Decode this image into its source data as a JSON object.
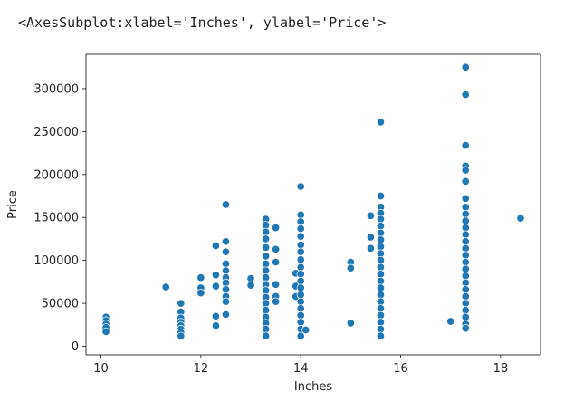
{
  "output_repr": "<AxesSubplot:xlabel='Inches', ylabel='Price'>",
  "chart_data": {
    "type": "scatter",
    "title": "",
    "xlabel": "Inches",
    "ylabel": "Price",
    "xlim": [
      9.7,
      18.8
    ],
    "ylim": [
      -10000,
      340000
    ],
    "xticks": [
      10,
      12,
      14,
      16,
      18
    ],
    "yticks": [
      0,
      50000,
      100000,
      150000,
      200000,
      250000,
      300000
    ],
    "xtick_labels": [
      "10",
      "12",
      "14",
      "16",
      "18"
    ],
    "ytick_labels": [
      "0",
      "50000",
      "100000",
      "150000",
      "200000",
      "250000",
      "300000"
    ],
    "grid": false,
    "marker_color": "#1f77b4",
    "points": [
      [
        10.1,
        34000
      ],
      [
        10.1,
        30000
      ],
      [
        10.1,
        26000
      ],
      [
        10.1,
        22000
      ],
      [
        10.1,
        17000
      ],
      [
        11.3,
        69000
      ],
      [
        11.6,
        50000
      ],
      [
        11.6,
        40000
      ],
      [
        11.6,
        33000
      ],
      [
        11.6,
        28000
      ],
      [
        11.6,
        24000
      ],
      [
        11.6,
        20000
      ],
      [
        11.6,
        16000
      ],
      [
        11.6,
        12000
      ],
      [
        12.0,
        80000
      ],
      [
        12.0,
        68000
      ],
      [
        12.0,
        62000
      ],
      [
        12.3,
        117000
      ],
      [
        12.3,
        83000
      ],
      [
        12.3,
        70000
      ],
      [
        12.3,
        35000
      ],
      [
        12.3,
        24000
      ],
      [
        12.5,
        165000
      ],
      [
        12.5,
        122000
      ],
      [
        12.5,
        110000
      ],
      [
        12.5,
        96000
      ],
      [
        12.5,
        88000
      ],
      [
        12.5,
        80000
      ],
      [
        12.5,
        74000
      ],
      [
        12.5,
        66000
      ],
      [
        12.5,
        58000
      ],
      [
        12.5,
        52000
      ],
      [
        12.5,
        37000
      ],
      [
        13.0,
        79000
      ],
      [
        13.0,
        71000
      ],
      [
        13.3,
        148000
      ],
      [
        13.3,
        141000
      ],
      [
        13.3,
        133000
      ],
      [
        13.3,
        125000
      ],
      [
        13.3,
        115000
      ],
      [
        13.3,
        105000
      ],
      [
        13.3,
        96000
      ],
      [
        13.3,
        88000
      ],
      [
        13.3,
        80000
      ],
      [
        13.3,
        72000
      ],
      [
        13.3,
        65000
      ],
      [
        13.3,
        57000
      ],
      [
        13.3,
        50000
      ],
      [
        13.3,
        42000
      ],
      [
        13.3,
        34000
      ],
      [
        13.3,
        27000
      ],
      [
        13.3,
        20000
      ],
      [
        13.3,
        12000
      ],
      [
        13.5,
        138000
      ],
      [
        13.5,
        113000
      ],
      [
        13.5,
        98000
      ],
      [
        13.5,
        72000
      ],
      [
        13.5,
        58000
      ],
      [
        13.5,
        52000
      ],
      [
        13.9,
        85000
      ],
      [
        13.9,
        70000
      ],
      [
        13.9,
        58000
      ],
      [
        14.0,
        186000
      ],
      [
        14.0,
        153000
      ],
      [
        14.0,
        145000
      ],
      [
        14.0,
        137000
      ],
      [
        14.0,
        128000
      ],
      [
        14.0,
        118000
      ],
      [
        14.0,
        110000
      ],
      [
        14.0,
        101000
      ],
      [
        14.0,
        92000
      ],
      [
        14.0,
        84000
      ],
      [
        14.0,
        76000
      ],
      [
        14.0,
        68000
      ],
      [
        14.0,
        60000
      ],
      [
        14.0,
        52000
      ],
      [
        14.0,
        44000
      ],
      [
        14.0,
        36000
      ],
      [
        14.0,
        28000
      ],
      [
        14.0,
        20000
      ],
      [
        14.0,
        12000
      ],
      [
        14.1,
        19000
      ],
      [
        15.0,
        98000
      ],
      [
        15.0,
        91000
      ],
      [
        15.0,
        27000
      ],
      [
        15.4,
        152000
      ],
      [
        15.4,
        127000
      ],
      [
        15.4,
        114000
      ],
      [
        15.6,
        261000
      ],
      [
        15.6,
        175000
      ],
      [
        15.6,
        162000
      ],
      [
        15.6,
        155000
      ],
      [
        15.6,
        148000
      ],
      [
        15.6,
        140000
      ],
      [
        15.6,
        132000
      ],
      [
        15.6,
        124000
      ],
      [
        15.6,
        116000
      ],
      [
        15.6,
        108000
      ],
      [
        15.6,
        100000
      ],
      [
        15.6,
        92000
      ],
      [
        15.6,
        84000
      ],
      [
        15.6,
        76000
      ],
      [
        15.6,
        68000
      ],
      [
        15.6,
        60000
      ],
      [
        15.6,
        52000
      ],
      [
        15.6,
        44000
      ],
      [
        15.6,
        36000
      ],
      [
        15.6,
        28000
      ],
      [
        15.6,
        20000
      ],
      [
        15.6,
        12000
      ],
      [
        17.0,
        29000
      ],
      [
        17.3,
        325000
      ],
      [
        17.3,
        293000
      ],
      [
        17.3,
        234000
      ],
      [
        17.3,
        210000
      ],
      [
        17.3,
        205000
      ],
      [
        17.3,
        192000
      ],
      [
        17.3,
        172000
      ],
      [
        17.3,
        162000
      ],
      [
        17.3,
        154000
      ],
      [
        17.3,
        146000
      ],
      [
        17.3,
        138000
      ],
      [
        17.3,
        130000
      ],
      [
        17.3,
        122000
      ],
      [
        17.3,
        114000
      ],
      [
        17.3,
        106000
      ],
      [
        17.3,
        98000
      ],
      [
        17.3,
        90000
      ],
      [
        17.3,
        82000
      ],
      [
        17.3,
        74000
      ],
      [
        17.3,
        66000
      ],
      [
        17.3,
        58000
      ],
      [
        17.3,
        50000
      ],
      [
        17.3,
        42000
      ],
      [
        17.3,
        34000
      ],
      [
        17.3,
        26000
      ],
      [
        17.3,
        21000
      ],
      [
        18.4,
        149000
      ]
    ]
  }
}
